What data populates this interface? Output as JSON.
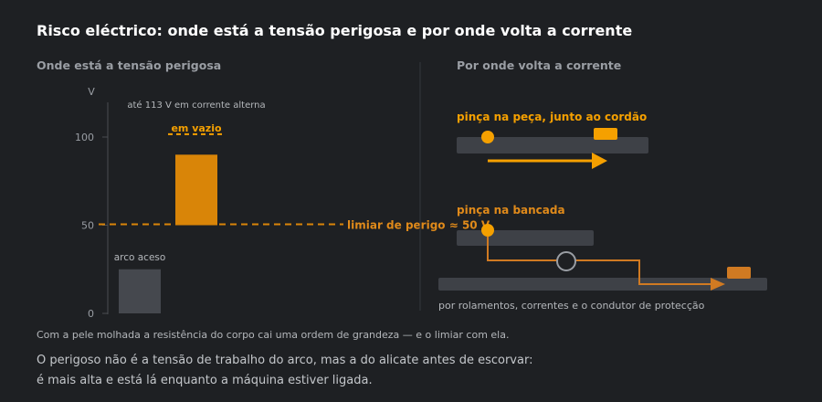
{
  "title": "Risco eléctrico: onde está a tensão perigosa e por onde volta a corrente",
  "left_panel": {
    "heading": "Onde está a tensão perigosa",
    "y_unit": "V",
    "y_ticks": [
      "100",
      "50",
      "0"
    ],
    "bar_arc_label": "arco aceso",
    "ac_note": "até 113 V em corrente alterna",
    "noload_label": "em vazio",
    "threshold_label": "limiar de perigo ≈ 50 V"
  },
  "right_panel": {
    "heading": "Por onde volta a corrente",
    "case_good_label": "pinça na peça, junto ao cordão",
    "case_bad_label": "pinça na bancada",
    "bad_path_caption": "por rolamentos, correntes e o condutor de protecção"
  },
  "chart_data": {
    "type": "bar",
    "ylabel": "V",
    "ylim": [
      0,
      120
    ],
    "categories": [
      "arco aceso",
      "em vazio"
    ],
    "bars": [
      {
        "label": "arco aceso",
        "bottom": 0,
        "top": 25
      },
      {
        "label": "em vazio",
        "bottom": 50,
        "top": 90
      }
    ],
    "annotations": {
      "max_ac": 113,
      "threshold": 50
    }
  },
  "footnote": "Com a pele molhada a resistência do corpo cai uma ordem de grandeza — e o limiar com ela.",
  "conclusion_line1": "O perigoso não é a tensão de trabalho do arco, mas a do alicate antes de escorvar:",
  "conclusion_line2": "é mais alta e está lá enquanto a máquina estiver ligada.",
  "colors": {
    "accent": "#f5a000",
    "accent_dark": "#d98508",
    "bad_path": "#d07a22",
    "bar_grey": "#45484e",
    "background": "#1e2023"
  }
}
